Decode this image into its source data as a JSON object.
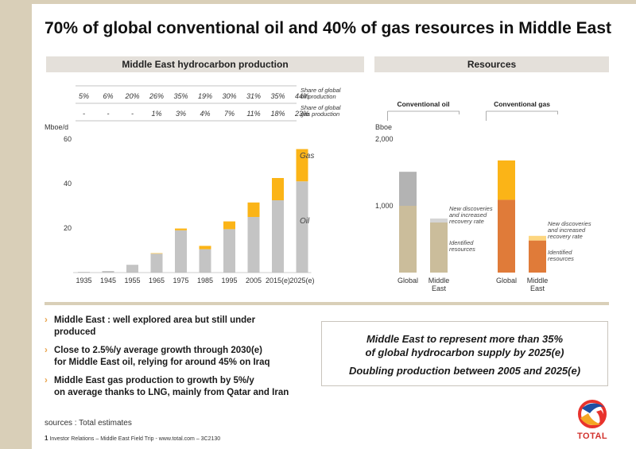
{
  "title": "70% of global conventional oil and 40% of gas resources in Middle East",
  "colors": {
    "gas": "#fbb417",
    "oil": "#c4c4c4",
    "oil_resource": "#cbbd9b",
    "gas_resource": "#e07b39",
    "undiscovered_oil": "#b3b3b3",
    "frame": "#d9cfb8"
  },
  "production_panel": {
    "header": "Middle East hydrocarbon production",
    "share_rows": [
      {
        "label": "Share of global oil production",
        "values": [
          "5%",
          "6%",
          "20%",
          "26%",
          "35%",
          "19%",
          "30%",
          "31%",
          "35%",
          "44%"
        ]
      },
      {
        "label": "Share of global gas production",
        "values": [
          "-",
          "-",
          "-",
          "1%",
          "3%",
          "4%",
          "7%",
          "11%",
          "18%",
          "23%"
        ]
      }
    ]
  },
  "resources_panel": {
    "header": "Resources",
    "group_titles": [
      "Conventional oil",
      "Conventional gas"
    ],
    "annotation_new": "New discoveries and increased recovery rate",
    "annotation_identified": "Identified resources"
  },
  "chart_data": [
    {
      "type": "bar",
      "stacked": true,
      "ylabel": "Mboe/d",
      "ylim": [
        0,
        60
      ],
      "yticks": [
        20,
        40,
        60
      ],
      "categories": [
        "1935",
        "1945",
        "1955",
        "1965",
        "1975",
        "1985",
        "1995",
        "2005",
        "2015(e)",
        "2025(e)"
      ],
      "series": [
        {
          "name": "Oil",
          "values": [
            0.3,
            0.7,
            3.5,
            8.5,
            19.0,
            10.5,
            19.5,
            25.0,
            32.5,
            41.0
          ]
        },
        {
          "name": "Gas",
          "values": [
            0.0,
            0.0,
            0.0,
            0.2,
            0.8,
            1.5,
            3.5,
            6.5,
            10.0,
            14.5
          ]
        }
      ]
    },
    {
      "type": "bar",
      "stacked": true,
      "ylabel": "Bboe",
      "ylim": [
        0,
        2000
      ],
      "yticks": [
        "1,000",
        "2,000"
      ],
      "groups": [
        {
          "name": "Conventional oil",
          "categories": [
            "Global",
            "Middle East"
          ],
          "identified": [
            1000,
            750
          ],
          "additional": [
            510,
            60
          ]
        },
        {
          "name": "Conventional gas",
          "categories": [
            "Global",
            "Middle East"
          ],
          "identified": [
            1090,
            480
          ],
          "additional": [
            590,
            70
          ]
        }
      ]
    }
  ],
  "bullets": [
    "Middle East : well explored area but still under\nproduced",
    "Close to 2.5%/y average growth through 2030(e)\nfor Middle East oil, relying for around 45% on Iraq",
    "Middle East gas production to growth by 5%/y\non average thanks to LNG, mainly from Qatar and Iran"
  ],
  "callout": {
    "line1": "Middle East to represent more than 35%\nof global hydrocarbon supply by 2025(e)",
    "line2": "Doubling production between 2005 and 2025(e)"
  },
  "sources": "sources : Total estimates",
  "footer": {
    "page": "1",
    "text": "Investor Relations – Middle East Field Trip - www.total.com",
    "code": "– 3C2130"
  },
  "logo_text": "TOTAL"
}
